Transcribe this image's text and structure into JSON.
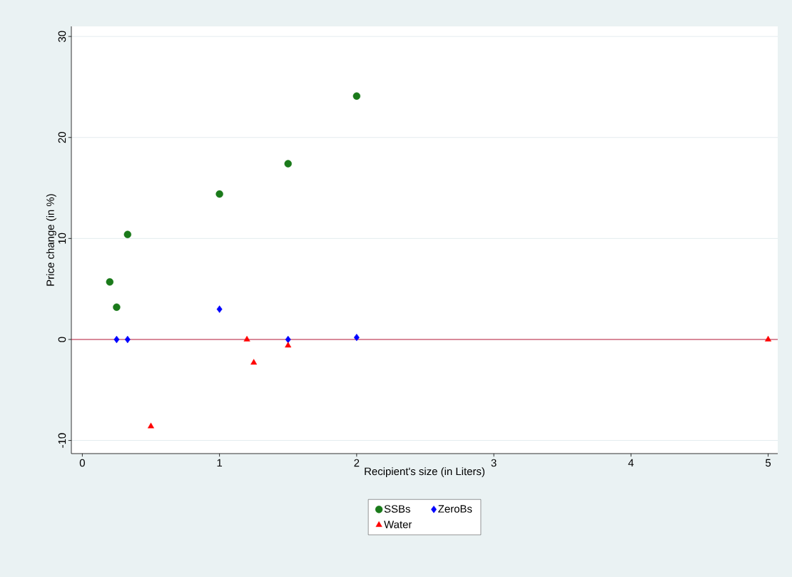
{
  "chart_data": {
    "type": "scatter",
    "xlabel": "Recipient's size (in Liters)",
    "ylabel": "Price change (in %)",
    "xlim": [
      -0.08,
      5.07
    ],
    "ylim": [
      -11.3,
      31
    ],
    "xticks": [
      0,
      1,
      2,
      3,
      4,
      5
    ],
    "yticks": [
      -10,
      0,
      10,
      20,
      30
    ],
    "grid": "y",
    "legend": "bottom",
    "ref_lines": [
      {
        "axis": "y",
        "value": 0,
        "color": "#c0203c"
      }
    ],
    "series": [
      {
        "name": "SSBs",
        "color": "#1a7a1a",
        "marker": "circle",
        "x": [
          0.2,
          0.25,
          0.33,
          1,
          1.5,
          2
        ],
        "values": [
          5.7,
          3.2,
          10.4,
          14.4,
          17.4,
          24.1
        ]
      },
      {
        "name": "ZeroBs",
        "color": "#0000ff",
        "marker": "diamond",
        "x": [
          0.25,
          0.33,
          1,
          1.5,
          2
        ],
        "values": [
          0,
          0,
          3.0,
          0,
          0.2
        ]
      },
      {
        "name": "Water",
        "color": "#ff0000",
        "marker": "triangle",
        "x": [
          0.5,
          1.2,
          1.25,
          1.5,
          5
        ],
        "values": [
          -8.6,
          0,
          -2.3,
          -0.6,
          0
        ]
      }
    ]
  }
}
